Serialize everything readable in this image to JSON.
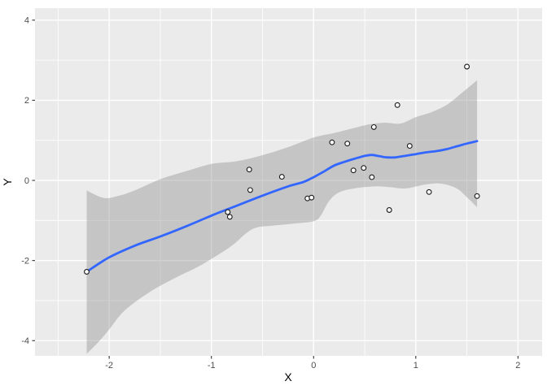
{
  "figure": {
    "x_axis_title": "X",
    "y_axis_title": "Y"
  },
  "chart_data": {
    "type": "scatter",
    "title": "",
    "xlabel": "X",
    "ylabel": "Y",
    "legend": "none",
    "grid": "on",
    "x_domain": [
      -2.726,
      2.236
    ],
    "y_domain": [
      -4.38,
      4.3
    ],
    "x_major_ticks": [
      -2,
      -1,
      0,
      1,
      2
    ],
    "x_minor_ticks": [
      -2.5,
      -1.5,
      -0.5,
      0.5,
      1.5
    ],
    "y_major_ticks": [
      -4,
      -2,
      0,
      2,
      4
    ],
    "y_minor_ticks": [
      -3,
      -1,
      1,
      3
    ],
    "points": [
      [
        -2.22,
        -2.28
      ],
      [
        -0.84,
        -0.79
      ],
      [
        -0.82,
        -0.91
      ],
      [
        -0.63,
        0.27
      ],
      [
        -0.62,
        -0.24
      ],
      [
        -0.31,
        0.09
      ],
      [
        -0.06,
        -0.45
      ],
      [
        -0.02,
        -0.43
      ],
      [
        0.18,
        0.95
      ],
      [
        0.33,
        0.92
      ],
      [
        0.39,
        0.25
      ],
      [
        0.49,
        0.31
      ],
      [
        0.57,
        0.08
      ],
      [
        0.59,
        1.33
      ],
      [
        0.74,
        -0.74
      ],
      [
        0.82,
        1.88
      ],
      [
        0.94,
        0.86
      ],
      [
        1.13,
        -0.29
      ],
      [
        1.5,
        2.84
      ],
      [
        1.6,
        -0.39
      ]
    ],
    "smooth_line": [
      [
        -2.22,
        -2.28
      ],
      [
        -2.0,
        -1.92
      ],
      [
        -1.75,
        -1.63
      ],
      [
        -1.5,
        -1.4
      ],
      [
        -1.25,
        -1.15
      ],
      [
        -1.0,
        -0.88
      ],
      [
        -0.75,
        -0.63
      ],
      [
        -0.5,
        -0.38
      ],
      [
        -0.25,
        -0.15
      ],
      [
        -0.1,
        -0.04
      ],
      [
        0.0,
        0.08
      ],
      [
        0.1,
        0.22
      ],
      [
        0.2,
        0.37
      ],
      [
        0.3,
        0.46
      ],
      [
        0.4,
        0.54
      ],
      [
        0.5,
        0.61
      ],
      [
        0.57,
        0.635
      ],
      [
        0.65,
        0.6
      ],
      [
        0.72,
        0.575
      ],
      [
        0.8,
        0.575
      ],
      [
        0.9,
        0.615
      ],
      [
        1.0,
        0.655
      ],
      [
        1.1,
        0.7
      ],
      [
        1.2,
        0.73
      ],
      [
        1.3,
        0.78
      ],
      [
        1.4,
        0.85
      ],
      [
        1.5,
        0.92
      ],
      [
        1.6,
        0.98
      ]
    ],
    "ribbon_upper": [
      [
        -2.22,
        -0.25
      ],
      [
        -2.05,
        -0.44
      ],
      [
        -1.9,
        -0.38
      ],
      [
        -1.75,
        -0.25
      ],
      [
        -1.5,
        0.03
      ],
      [
        -1.25,
        0.23
      ],
      [
        -1.0,
        0.41
      ],
      [
        -0.75,
        0.48
      ],
      [
        -0.5,
        0.63
      ],
      [
        -0.25,
        0.83
      ],
      [
        0.0,
        1.07
      ],
      [
        0.2,
        1.18
      ],
      [
        0.4,
        1.31
      ],
      [
        0.55,
        1.4
      ],
      [
        0.7,
        1.44
      ],
      [
        0.85,
        1.42
      ],
      [
        1.0,
        1.58
      ],
      [
        1.15,
        1.7
      ],
      [
        1.3,
        1.88
      ],
      [
        1.45,
        2.18
      ],
      [
        1.6,
        2.5
      ]
    ],
    "ribbon_lower": [
      [
        -2.22,
        -4.33
      ],
      [
        -2.1,
        -4.02
      ],
      [
        -2.0,
        -3.72
      ],
      [
        -1.85,
        -3.25
      ],
      [
        -1.6,
        -2.78
      ],
      [
        -1.35,
        -2.43
      ],
      [
        -1.15,
        -2.18
      ],
      [
        -1.0,
        -1.96
      ],
      [
        -0.8,
        -1.63
      ],
      [
        -0.65,
        -1.3
      ],
      [
        -0.55,
        -1.17
      ],
      [
        -0.4,
        -1.13
      ],
      [
        -0.2,
        -1.08
      ],
      [
        0.0,
        -1.02
      ],
      [
        0.07,
        -0.88
      ],
      [
        0.15,
        -0.52
      ],
      [
        0.25,
        -0.3
      ],
      [
        0.4,
        -0.2
      ],
      [
        0.6,
        -0.15
      ],
      [
        0.75,
        -0.17
      ],
      [
        0.9,
        -0.2
      ],
      [
        1.1,
        -0.1
      ],
      [
        1.25,
        -0.08
      ],
      [
        1.4,
        -0.2
      ],
      [
        1.5,
        -0.42
      ],
      [
        1.6,
        -0.67
      ]
    ],
    "colors": {
      "panel_background": "#EBEBEB",
      "gridline": "#FFFFFF",
      "ribbon_fill": "#8C8C8C",
      "ribbon_alpha": 0.4,
      "smooth_line": "#3366FF",
      "point_fill": "#FFFFFF",
      "point_stroke": "#1A1A1A",
      "tick_mark": "#333333",
      "tick_label": "#4D4D4D",
      "axis_title": "#000000"
    }
  }
}
